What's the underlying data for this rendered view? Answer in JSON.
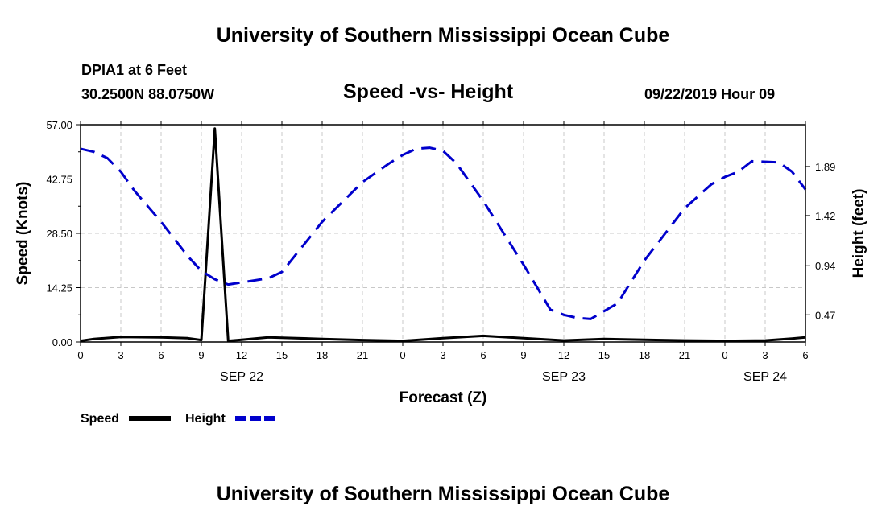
{
  "header": {
    "title": "University of Southern Mississippi Ocean Cube",
    "station": "DPIA1 at 6 Feet",
    "coordinates": "30.2500N 88.0750W",
    "chart_title": "Speed -vs- Height",
    "datetime": "09/22/2019 Hour 09"
  },
  "footer": {
    "title": "University of Southern Mississippi Ocean Cube"
  },
  "chart_data": {
    "type": "line",
    "title": "Speed -vs- Height",
    "xlabel": "Forecast (Z)",
    "ylabel_left": "Speed (Knots)",
    "ylabel_right": "Height (feet)",
    "x_range": [
      0,
      54
    ],
    "x_ticks": [
      0,
      3,
      6,
      9,
      12,
      15,
      18,
      21,
      24,
      27,
      30,
      33,
      36,
      39,
      42,
      45,
      48,
      51,
      54
    ],
    "x_tick_labels": [
      "0",
      "3",
      "6",
      "9",
      "12",
      "15",
      "18",
      "21",
      "0",
      "3",
      "6",
      "9",
      "12",
      "15",
      "18",
      "21",
      "0",
      "3",
      "6"
    ],
    "date_labels": [
      {
        "label": "SEP 22",
        "x": 12
      },
      {
        "label": "SEP 23",
        "x": 36
      },
      {
        "label": "SEP 24",
        "x": 51
      }
    ],
    "left_axis": {
      "range": [
        0,
        57
      ],
      "ticks": [
        0,
        14.25,
        28.5,
        42.75,
        57
      ],
      "tick_labels": [
        "0.00",
        "14.25",
        "28.50",
        "42.75",
        "57.00"
      ]
    },
    "right_axis": {
      "range": [
        0.21,
        2.29
      ],
      "ticks": [
        0.47,
        0.94,
        1.42,
        1.89
      ],
      "tick_labels": [
        "0.47",
        "0.94",
        "1.42",
        "1.89"
      ]
    },
    "grid": true,
    "legend_position": "bottom-left",
    "series": [
      {
        "name": "Speed",
        "axis": "left",
        "color": "#000000",
        "style": "solid",
        "x": [
          0,
          1,
          3,
          6,
          8,
          9,
          10,
          11,
          12,
          14,
          18,
          21,
          24,
          27,
          30,
          33,
          36,
          39,
          42,
          45,
          48,
          51,
          53,
          54
        ],
        "y": [
          0.3,
          0.8,
          1.3,
          1.2,
          1.0,
          0.5,
          56.0,
          0.3,
          0.6,
          1.2,
          0.8,
          0.5,
          0.3,
          1.0,
          1.6,
          1.0,
          0.4,
          0.8,
          0.6,
          0.4,
          0.3,
          0.4,
          0.9,
          1.2
        ]
      },
      {
        "name": "Height",
        "axis": "right",
        "color": "#0000cc",
        "style": "dashed",
        "x": [
          0,
          1,
          2,
          3,
          4,
          6,
          8,
          9,
          10,
          11,
          12,
          14,
          15,
          18,
          21,
          23,
          24,
          25,
          26,
          27,
          28,
          30,
          33,
          35,
          36,
          37,
          38,
          40,
          42,
          45,
          47,
          48,
          49,
          50,
          52,
          53,
          54
        ],
        "y": [
          2.06,
          2.03,
          1.97,
          1.84,
          1.66,
          1.36,
          1.03,
          0.89,
          0.81,
          0.76,
          0.78,
          0.82,
          0.88,
          1.36,
          1.74,
          1.92,
          2.0,
          2.06,
          2.07,
          2.04,
          1.92,
          1.56,
          0.95,
          0.52,
          0.47,
          0.44,
          0.43,
          0.58,
          0.99,
          1.49,
          1.72,
          1.79,
          1.84,
          1.94,
          1.93,
          1.84,
          1.67
        ]
      }
    ]
  }
}
